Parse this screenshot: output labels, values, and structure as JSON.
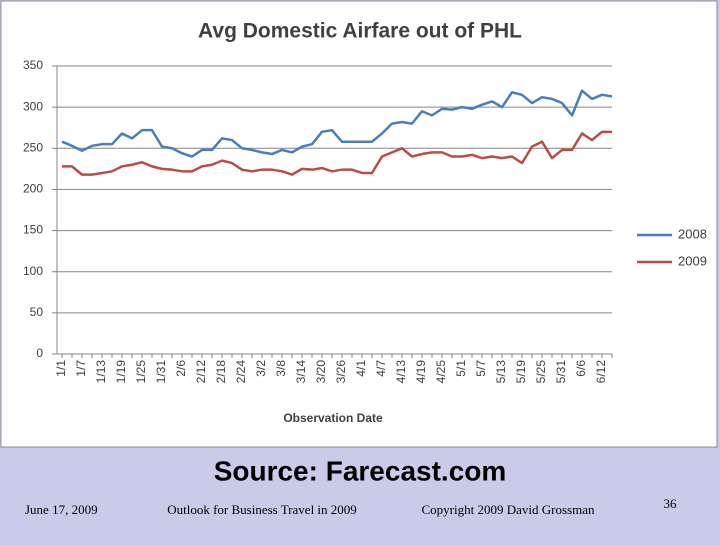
{
  "chart_data": {
    "type": "line",
    "title": "Avg Domestic Airfare out of PHL",
    "x_label": "Observation Date",
    "categories": [
      "1/1",
      null,
      "1/7",
      null,
      "1/13",
      null,
      "1/19",
      null,
      "1/25",
      null,
      "1/31",
      null,
      "2/6",
      null,
      "2/12",
      null,
      "2/18",
      null,
      "2/24",
      null,
      "3/2",
      null,
      "3/8",
      null,
      "3/14",
      null,
      "3/20",
      null,
      "3/26",
      null,
      "4/1",
      null,
      "4/7",
      null,
      "4/13",
      null,
      "4/19",
      null,
      "4/25",
      null,
      "5/1",
      null,
      "5/7",
      null,
      "5/13",
      null,
      "5/19",
      null,
      "5/25",
      null,
      "5/31",
      null,
      "6/6",
      null,
      "6/12",
      null
    ],
    "series": [
      {
        "name": "2008",
        "color": "#4a7ebb",
        "values": [
          258,
          253,
          247,
          253,
          255,
          255,
          268,
          262,
          272,
          272,
          252,
          250,
          244,
          240,
          248,
          248,
          262,
          260,
          250,
          248,
          245,
          243,
          248,
          245,
          252,
          255,
          270,
          272,
          258,
          258,
          258,
          258,
          268,
          280,
          282,
          280,
          295,
          290,
          298,
          297,
          300,
          298,
          303,
          307,
          300,
          318,
          315,
          305,
          312,
          310,
          305,
          290,
          320,
          310,
          315,
          313
        ]
      },
      {
        "name": "2009",
        "color": "#be4b48",
        "values": [
          228,
          228,
          218,
          218,
          220,
          222,
          228,
          230,
          233,
          228,
          225,
          224,
          222,
          222,
          228,
          230,
          235,
          232,
          224,
          222,
          224,
          224,
          222,
          218,
          225,
          224,
          226,
          222,
          224,
          224,
          220,
          220,
          240,
          245,
          250,
          240,
          243,
          245,
          245,
          240,
          240,
          242,
          238,
          240,
          238,
          240,
          232,
          252,
          258,
          238,
          248,
          248,
          268,
          260,
          270,
          270
        ]
      }
    ],
    "ylim": [
      0,
      350
    ],
    "yticks": [
      0,
      50,
      100,
      150,
      200,
      250,
      300,
      350
    ],
    "grid": true,
    "legend": "right"
  },
  "slide": {
    "source": "Source: Farecast.com",
    "date": "June 17, 2009",
    "presentation": "Outlook for Business Travel in 2009",
    "copyright": "Copyright 2009 David Grossman",
    "page": "36"
  }
}
